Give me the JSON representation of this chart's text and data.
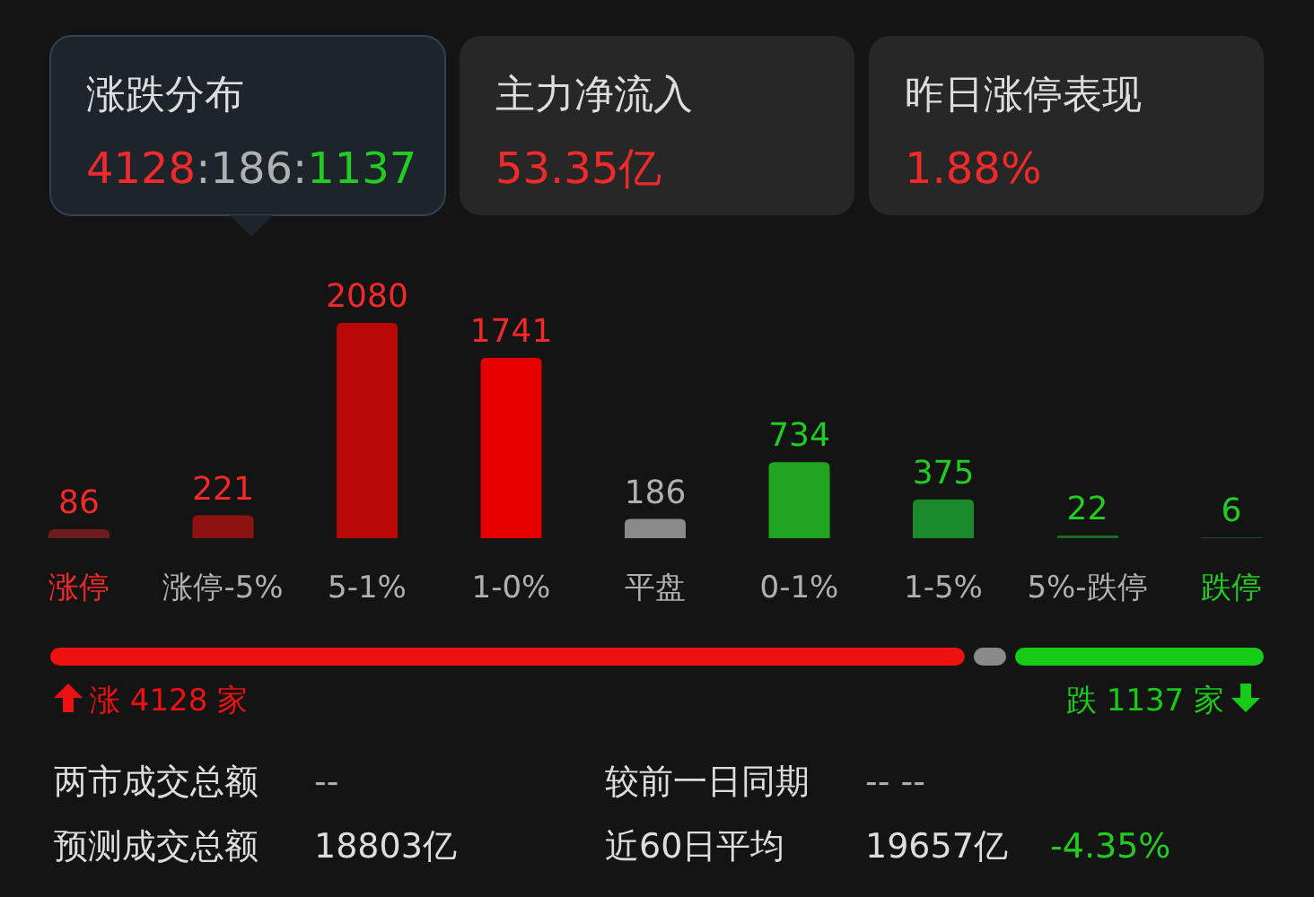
{
  "chart_data": [
    {
      "type": "other",
      "annotations": [
        "涨跌分布",
        "4128:186:1137",
        "主力净流入",
        "53.35亿",
        "昨日涨停表现",
        "1.88%"
      ]
    },
    {
      "type": "bar",
      "categories": [
        "涨停",
        "涨停-5%",
        "5-1%",
        "1-0%",
        "平盘",
        "0-1%",
        "1-5%",
        "5%-跌停",
        "跌停"
      ],
      "values": [
        86,
        221,
        2080,
        1741,
        186,
        734,
        375,
        22,
        6
      ],
      "colors": [
        "#6e1c1c",
        "#8f1212",
        "#b80808",
        "#e60000",
        "#8a8a8a",
        "#1fa51f",
        "#1a8a2a",
        "#1d6a25",
        "#1b4a22"
      ],
      "data_labels": true
    },
    {
      "type": "other",
      "annotations": [
        "涨 4128 家",
        "跌 1137 家"
      ]
    },
    {
      "type": "other",
      "annotations": [
        "两市成交总额",
        "--",
        "较前一日同期",
        "-- --",
        "预测成交总额",
        "18803亿",
        "近60日平均",
        "19657亿",
        "-4.35%"
      ]
    }
  ]
}
